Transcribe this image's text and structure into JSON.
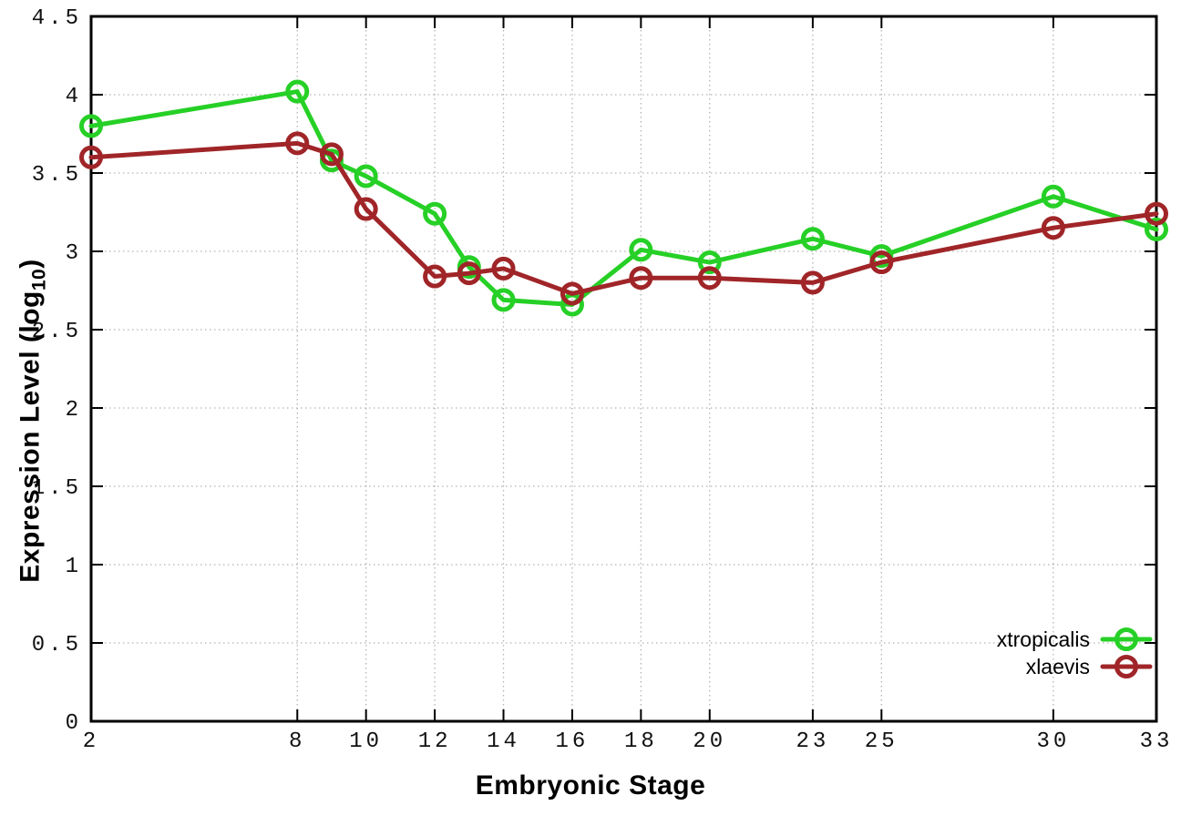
{
  "chart_data": {
    "type": "line",
    "title": "",
    "xlabel": "Embryonic Stage",
    "ylabel": {
      "prefix": "Expression Level (log",
      "sub": "10",
      "suffix": ")"
    },
    "xlim": [
      2,
      33
    ],
    "ylim": [
      0,
      4.5
    ],
    "x_ticks": [
      2,
      8,
      10,
      12,
      14,
      16,
      18,
      20,
      23,
      25,
      30,
      33
    ],
    "y_ticks": [
      0,
      0.5,
      1,
      1.5,
      2,
      2.5,
      3,
      3.5,
      4,
      4.5
    ],
    "grid": true,
    "legend_position": "bottom-right",
    "x": [
      2,
      8,
      9,
      10,
      12,
      13,
      14,
      16,
      18,
      20,
      23,
      25,
      30,
      33
    ],
    "series": [
      {
        "name": "xtropicalis",
        "color": "#26d026",
        "values": [
          3.8,
          4.02,
          3.58,
          3.48,
          3.24,
          2.9,
          2.69,
          2.66,
          3.01,
          2.93,
          3.08,
          2.97,
          3.35,
          3.14
        ]
      },
      {
        "name": "xlaevis",
        "color": "#a02528",
        "values": [
          3.6,
          3.69,
          3.62,
          3.27,
          2.84,
          2.86,
          2.89,
          2.73,
          2.83,
          2.83,
          2.8,
          2.93,
          3.15,
          3.24
        ]
      }
    ],
    "colors": {
      "border": "#000000",
      "grid": "#b4b4b4",
      "tick_text": "#111111"
    }
  }
}
